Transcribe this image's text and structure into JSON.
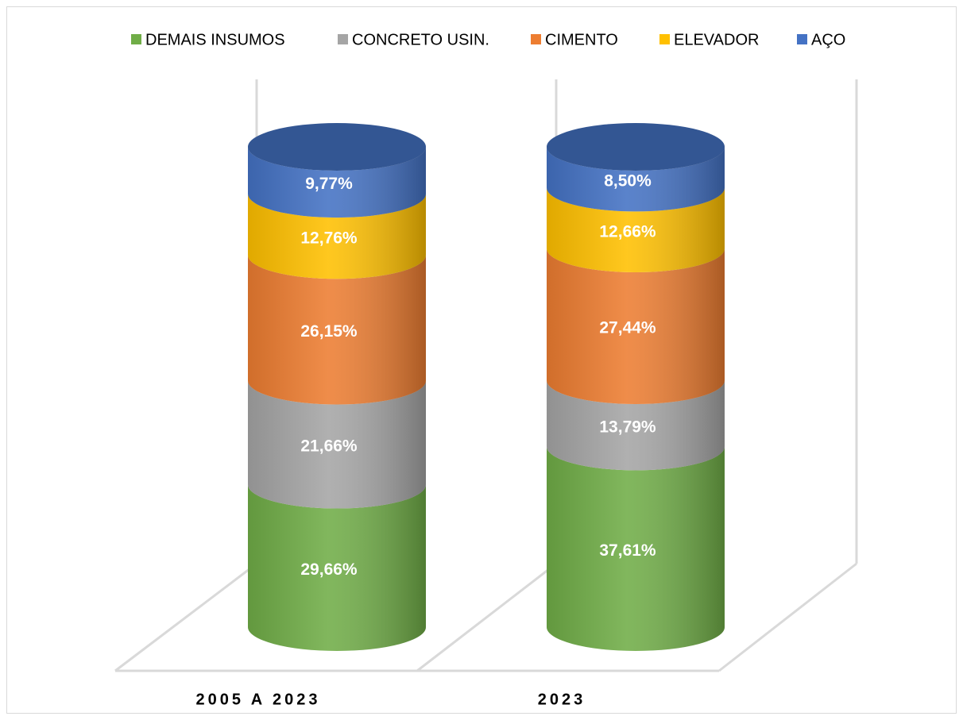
{
  "chart_data": {
    "type": "bar3d_cylinder_stacked",
    "categories": [
      "2005 A 2023",
      "2023"
    ],
    "series": [
      {
        "name": "DEMAIS INSUMOS",
        "color": "#70ad47",
        "values": [
          29.66,
          37.61
        ],
        "value_labels": [
          "29,66%",
          "37,61%"
        ]
      },
      {
        "name": "CONCRETO USIN.",
        "color": "#a5a5a5",
        "values": [
          21.66,
          13.79
        ],
        "value_labels": [
          "21,66%",
          "13,79%"
        ]
      },
      {
        "name": "CIMENTO",
        "color": "#ed7d31",
        "values": [
          26.15,
          27.44
        ],
        "value_labels": [
          "26,15%",
          "27,44%"
        ]
      },
      {
        "name": "ELEVADOR",
        "color": "#ffc000",
        "values": [
          12.76,
          12.66
        ],
        "value_labels": [
          "12,76%",
          "12,66%"
        ]
      },
      {
        "name": "AÇO",
        "color": "#4472c4",
        "values": [
          9.77,
          8.5
        ],
        "value_labels": [
          "9,77%",
          "8,50%"
        ]
      }
    ],
    "ylim": [
      0,
      100
    ],
    "legend": "top"
  }
}
